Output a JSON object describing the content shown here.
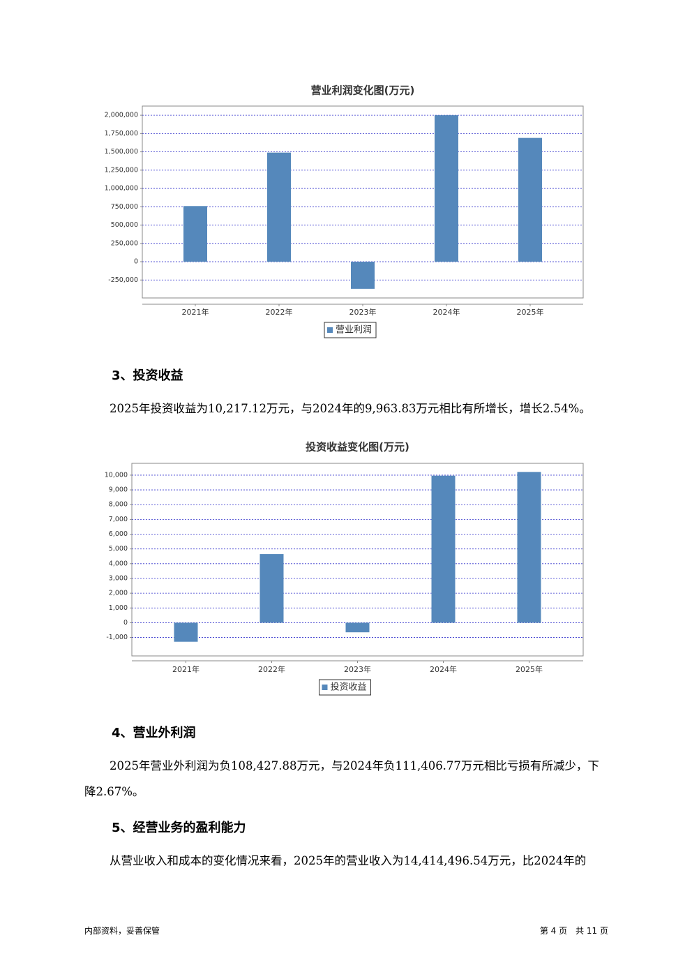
{
  "chart_data": [
    {
      "type": "bar",
      "title": "营业利润变化图(万元)",
      "categories": [
        "2021年",
        "2022年",
        "2023年",
        "2024年",
        "2025年"
      ],
      "series": [
        {
          "name": "营业利润",
          "color": "#5588bb",
          "values": [
            760000,
            1490000,
            -370000,
            2000000,
            1690000
          ]
        }
      ],
      "ylim": [
        -495000,
        2125000
      ],
      "yticks": [
        {
          "value": -250000,
          "label": "-250,000"
        },
        0,
        {
          "value": 250000,
          "label": "250,000"
        },
        {
          "value": 500000,
          "label": "500,000"
        },
        {
          "value": 750000,
          "label": "750,000"
        },
        {
          "value": 1000000,
          "label": "1,000,000"
        },
        {
          "value": 1250000,
          "label": "1,250,000"
        },
        {
          "value": 1500000,
          "label": "1,500,000"
        },
        {
          "value": 1750000,
          "label": "1,750,000"
        },
        {
          "value": 2000000,
          "label": "2,000,000"
        }
      ],
      "grid": true
    },
    {
      "type": "bar",
      "title": "投资收益变化图(万元)",
      "categories": [
        "2021年",
        "2022年",
        "2023年",
        "2024年",
        "2025年"
      ],
      "series": [
        {
          "name": "投资收益",
          "color": "#5588bb",
          "values": [
            -1290,
            4650,
            -650,
            9963.83,
            10217.12
          ]
        }
      ],
      "ylim": [
        -2250,
        10800
      ],
      "yticks": [
        {
          "value": -1000,
          "label": "-1,000"
        },
        0,
        {
          "value": 1000,
          "label": "1,000"
        },
        {
          "value": 2000,
          "label": "2,000"
        },
        {
          "value": 3000,
          "label": "3,000"
        },
        {
          "value": 4000,
          "label": "4,000"
        },
        {
          "value": 5000,
          "label": "5,000"
        },
        {
          "value": 6000,
          "label": "6,000"
        },
        {
          "value": 7000,
          "label": "7,000"
        },
        {
          "value": 8000,
          "label": "8,000"
        },
        {
          "value": 9000,
          "label": "9,000"
        },
        {
          "value": 10000,
          "label": "10,000"
        }
      ],
      "grid": true
    }
  ],
  "sections": [
    {
      "heading": "3、投资收益",
      "paragraph": "2025年投资收益为10,217.12万元，与2024年的9,963.83万元相比有所增长，增长2.54%。"
    },
    {
      "heading": "4、营业外利润",
      "paragraph": "2025年营业外利润为负108,427.88万元，与2024年负111,406.77万元相比亏损有所减少，下降2.67%。"
    },
    {
      "heading": "5、经营业务的盈利能力",
      "paragraph": "从营业收入和成本的变化情况来看，2025年的营业收入为14,414,496.54万元，比2024年的"
    }
  ],
  "footer": {
    "left": "内部资料，妥善保管",
    "right": "第 4 页　共 11 页"
  }
}
